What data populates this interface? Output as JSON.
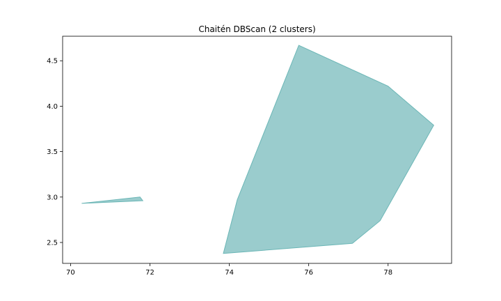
{
  "chart_data": {
    "type": "area",
    "title": "Chaitén DBScan (2 clusters)",
    "xlabel": "",
    "ylabel": "",
    "xlim": [
      69.8,
      79.6
    ],
    "ylim": [
      2.27,
      4.77
    ],
    "x_ticks": [
      70,
      72,
      74,
      76,
      78
    ],
    "x_tick_labels": [
      "70",
      "72",
      "74",
      "76",
      "78"
    ],
    "y_ticks": [
      2.5,
      3.0,
      3.5,
      4.0,
      4.5
    ],
    "y_tick_labels": [
      "2.5",
      "3.0",
      "3.5",
      "4.0",
      "4.5"
    ],
    "grid": false,
    "legend": "none",
    "fill_color": "#9acccd",
    "edge_color": "#6bb6b6",
    "polygons": [
      [
        [
          70.28,
          2.93
        ],
        [
          71.75,
          3.0
        ],
        [
          71.82,
          2.96
        ]
      ],
      [
        [
          73.85,
          2.38
        ],
        [
          77.1,
          2.49
        ],
        [
          77.8,
          2.74
        ],
        [
          79.15,
          3.79
        ],
        [
          78.0,
          4.22
        ],
        [
          75.75,
          4.67
        ],
        [
          74.2,
          2.97
        ]
      ]
    ]
  }
}
